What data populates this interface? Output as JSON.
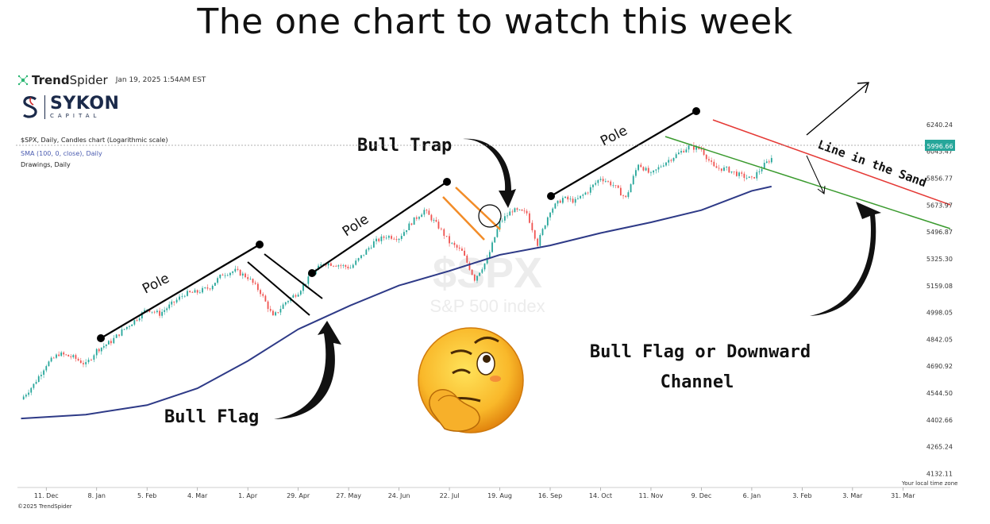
{
  "headline": "The one chart to watch this week",
  "header": {
    "brand_bold": "Trend",
    "brand_light": "Spider",
    "timestamp": "Jan 19, 2025 1:54AM EST",
    "company": "SYKON",
    "company_sub": "CAPITAL"
  },
  "meta": {
    "symbol_line": "$SPX, Daily, Candles chart (Logarithmic scale)",
    "sma_line": "SMA (100, 0, close), Daily",
    "drawings_line": "Drawings, Daily"
  },
  "footer": {
    "copyright": "©2025 TrendSpider",
    "local_tz": "Your local time zone"
  },
  "chart_data": {
    "type": "line",
    "scale": "log",
    "title": "The one chart to watch this week",
    "watermark_symbol": "$SPX",
    "watermark_name": "S&P 500 index",
    "x_ticks": [
      "11. Dec",
      "8. Jan",
      "5. Feb",
      "4. Mar",
      "1. Apr",
      "29. Apr",
      "27. May",
      "24. Jun",
      "22. Jul",
      "19. Aug",
      "16. Sep",
      "14. Oct",
      "11. Nov",
      "9. Dec",
      "6. Jan",
      "3. Feb",
      "3. Mar",
      "31. Mar"
    ],
    "y_ticks": [
      6240.24,
      6045.47,
      5856.77,
      5673.97,
      5496.87,
      5325.3,
      5159.08,
      4998.05,
      4842.05,
      4690.92,
      4544.5,
      4402.66,
      4265.24,
      4132.11
    ],
    "ylim": [
      4080,
      6460
    ],
    "last_price": 5996.66,
    "price_series": {
      "name": "",
      "x": [
        "2023-11-27",
        "2023-12-04",
        "2023-12-11",
        "2023-12-18",
        "2023-12-26",
        "2024-01-02",
        "2024-01-08",
        "2024-01-16",
        "2024-01-22",
        "2024-01-29",
        "2024-02-05",
        "2024-02-12",
        "2024-02-20",
        "2024-02-26",
        "2024-03-04",
        "2024-03-11",
        "2024-03-18",
        "2024-03-25",
        "2024-04-01",
        "2024-04-08",
        "2024-04-15",
        "2024-04-22",
        "2024-04-29",
        "2024-05-06",
        "2024-05-13",
        "2024-05-20",
        "2024-05-28",
        "2024-06-03",
        "2024-06-10",
        "2024-06-17",
        "2024-06-24",
        "2024-07-01",
        "2024-07-08",
        "2024-07-16",
        "2024-07-22",
        "2024-07-29",
        "2024-08-05",
        "2024-08-12",
        "2024-08-19",
        "2024-08-26",
        "2024-09-03",
        "2024-09-09",
        "2024-09-16",
        "2024-09-23",
        "2024-09-30",
        "2024-10-07",
        "2024-10-14",
        "2024-10-21",
        "2024-10-28",
        "2024-11-04",
        "2024-11-11",
        "2024-11-18",
        "2024-11-25",
        "2024-12-02",
        "2024-12-09",
        "2024-12-16",
        "2024-12-23",
        "2024-12-30",
        "2025-01-06",
        "2025-01-13",
        "2025-01-17"
      ],
      "values": [
        4510,
        4590,
        4700,
        4760,
        4740,
        4700,
        4780,
        4830,
        4890,
        4950,
        5020,
        4990,
        5060,
        5110,
        5120,
        5150,
        5230,
        5250,
        5210,
        5120,
        4970,
        5060,
        5120,
        5220,
        5300,
        5290,
        5270,
        5340,
        5430,
        5470,
        5460,
        5560,
        5640,
        5530,
        5430,
        5370,
        5200,
        5320,
        5560,
        5640,
        5620,
        5420,
        5640,
        5720,
        5700,
        5770,
        5860,
        5810,
        5720,
        5960,
        5880,
        5960,
        6020,
        6080,
        6060,
        5930,
        5920,
        5880,
        5850,
        5950,
        5996.66
      ]
    },
    "sma_series": {
      "name": "",
      "x": [
        "2023-11-27",
        "2024-01-02",
        "2024-02-05",
        "2024-03-04",
        "2024-04-01",
        "2024-04-29",
        "2024-05-28",
        "2024-06-24",
        "2024-07-22",
        "2024-08-19",
        "2024-09-16",
        "2024-10-14",
        "2024-11-11",
        "2024-12-09",
        "2025-01-06",
        "2025-01-17"
      ],
      "values": [
        4410,
        4430,
        4480,
        4570,
        4720,
        4900,
        5040,
        5160,
        5250,
        5350,
        5410,
        5490,
        5560,
        5640,
        5770,
        5800
      ]
    },
    "annotations": [
      {
        "text": "Pole"
      },
      {
        "text": "Pole"
      },
      {
        "text": "Pole"
      },
      {
        "text": "Bull Trap"
      },
      {
        "text": "Bull Flag"
      },
      {
        "text": "Bull Flag or Downward"
      },
      {
        "text": "Channel"
      },
      {
        "text": "Line in the Sand"
      }
    ],
    "colors": {
      "up": "#26a69a",
      "down": "#ef5350",
      "sma": "#2e3a87",
      "trap": "#f28c28",
      "channel_top": "#e53935",
      "channel_bottom": "#3a9a2e",
      "last_price_tag": "#26a69a"
    }
  }
}
